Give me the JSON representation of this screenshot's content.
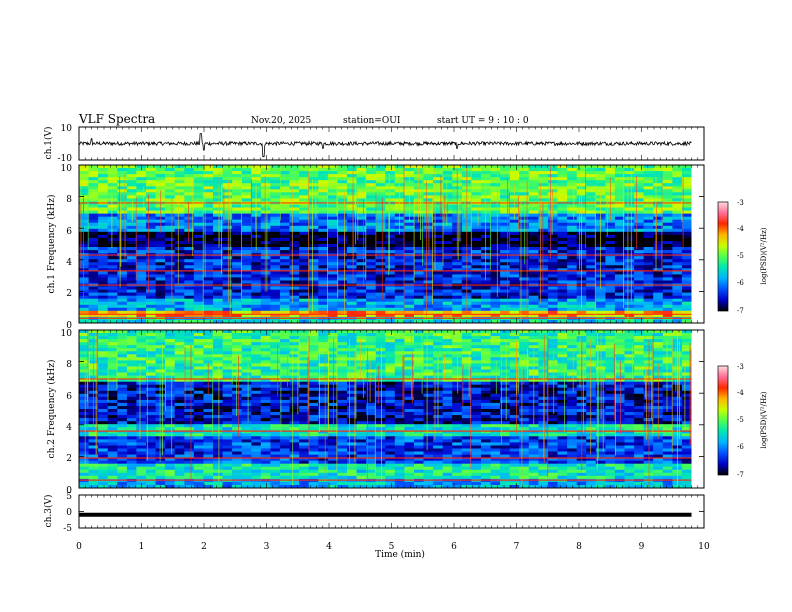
{
  "header": {
    "title": "VLF Spectra",
    "date": "Nov.20, 2025",
    "station": "station=OUI",
    "start_ut": "start UT = 9 : 10 : 0"
  },
  "colorbar": {
    "label": "log(PSD)(V²/Hz)",
    "ticks": [
      "-3",
      "-4",
      "-5",
      "-6",
      "-7"
    ],
    "range": [
      -7,
      -3
    ],
    "colors": [
      "#000000",
      "#0000c8",
      "#0050ff",
      "#00b4ff",
      "#00e6b4",
      "#50ff50",
      "#c8ff00",
      "#ffb400",
      "#ff2800",
      "#ff6e96",
      "#ffdcdc"
    ]
  },
  "chart_data": [
    {
      "type": "line",
      "name": "ch1 waveform",
      "ylabel": "ch.1(V)",
      "ylim": [
        -10,
        10
      ],
      "y_ticks": [
        "10",
        "-10"
      ],
      "xlim": [
        0,
        10
      ],
      "baseline_v": 0,
      "spikes": [
        {
          "x": 0.2,
          "y": 3
        },
        {
          "x": 1.95,
          "y": 6
        },
        {
          "x": 2.0,
          "y": -4
        },
        {
          "x": 2.95,
          "y": -8
        },
        {
          "x": 3.9,
          "y": -3
        },
        {
          "x": 6.05,
          "y": -3
        }
      ]
    },
    {
      "type": "heatmap",
      "name": "ch1 spectrogram",
      "ylabel": "ch.1 Frequency (kHz)",
      "ylim": [
        0,
        10
      ],
      "y_ticks": [
        "0",
        "2",
        "4",
        "6",
        "8",
        "10"
      ],
      "xlim": [
        0,
        9.8
      ],
      "bands_khz": [
        {
          "from": 0,
          "to": 0.3,
          "level": -5.5
        },
        {
          "from": 0.3,
          "to": 0.8,
          "level": -4.2
        },
        {
          "from": 0.8,
          "to": 1.6,
          "level": -5.8
        },
        {
          "from": 1.6,
          "to": 4.8,
          "level": -6.4
        },
        {
          "from": 4.8,
          "to": 5.7,
          "level": -7.0
        },
        {
          "from": 5.7,
          "to": 7.0,
          "level": -6.0
        },
        {
          "from": 7.0,
          "to": 10,
          "level": -5.0
        }
      ],
      "lines_khz": [
        0.3,
        0.55,
        2.4,
        3.3,
        4.3,
        7.6
      ]
    },
    {
      "type": "heatmap",
      "name": "ch2 spectrogram",
      "ylabel": "ch.2 Frequency (kHz)",
      "ylim": [
        0,
        10
      ],
      "y_ticks": [
        "0",
        "2",
        "4",
        "6",
        "8",
        "10"
      ],
      "xlim": [
        0,
        9.8
      ],
      "bands_khz": [
        {
          "from": 0,
          "to": 0.5,
          "level": -5.8
        },
        {
          "from": 0.5,
          "to": 1.5,
          "level": -5.4
        },
        {
          "from": 1.5,
          "to": 3.2,
          "level": -6.3
        },
        {
          "from": 3.2,
          "to": 4.0,
          "level": -5.4
        },
        {
          "from": 4.0,
          "to": 6.8,
          "level": -6.5
        },
        {
          "from": 6.8,
          "to": 10,
          "level": -5.2
        }
      ],
      "lines_khz": [
        0.5,
        1.9,
        3.6,
        6.9
      ]
    },
    {
      "type": "line",
      "name": "ch3 waveform",
      "ylabel": "ch.3(V)",
      "ylim": [
        -5,
        5
      ],
      "y_ticks": [
        "5",
        "0",
        "-5"
      ],
      "xlim": [
        0,
        10
      ],
      "baseline_v": -1
    }
  ],
  "xaxis": {
    "label": "Time (min)",
    "ticks": [
      "0",
      "1",
      "2",
      "3",
      "4",
      "5",
      "6",
      "7",
      "8",
      "9",
      "10"
    ],
    "range": [
      0,
      10
    ]
  }
}
